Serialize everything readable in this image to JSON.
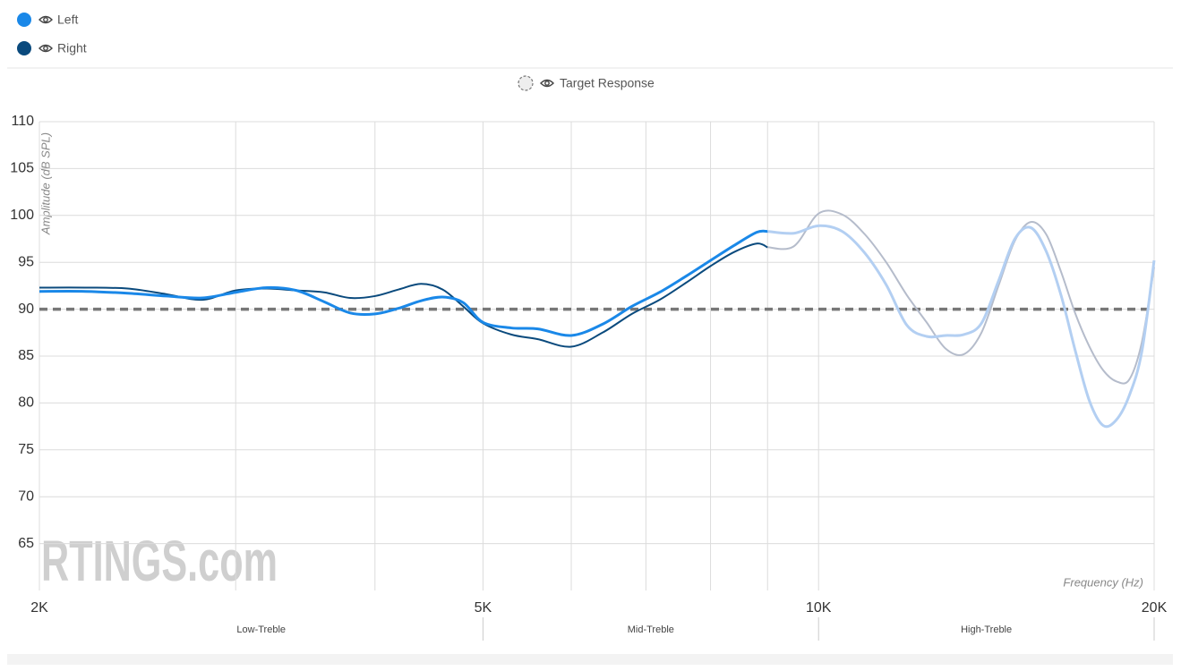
{
  "chart_data": {
    "type": "line",
    "xscale": "log",
    "xlim": [
      2000,
      20000
    ],
    "ylim": [
      60,
      110
    ],
    "xticks": [
      {
        "value": 2000,
        "label": "2K"
      },
      {
        "value": 5000,
        "label": "5K"
      },
      {
        "value": 10000,
        "label": "10K"
      },
      {
        "value": 20000,
        "label": "20K"
      }
    ],
    "x_gridlines": [
      3000,
      4000,
      6000,
      7000,
      8000,
      9000
    ],
    "yticks": [
      65,
      70,
      75,
      80,
      85,
      90,
      95,
      100,
      105,
      110
    ],
    "grid": true,
    "ylabel": "Amplitude (dB SPL)",
    "xlabel": "Frequency (Hz)",
    "watermark": "RTINGS.com",
    "faded_above": 9000,
    "bands": [
      {
        "label": "Low-Treble",
        "from": 2000,
        "to": 5000
      },
      {
        "label": "Mid-Treble",
        "from": 5000,
        "to": 10000
      },
      {
        "label": "High-Treble",
        "from": 10000,
        "to": 20000
      }
    ],
    "target": {
      "name": "Target Response",
      "value": 90,
      "color": "#777777"
    },
    "x": [
      2000,
      2200,
      2400,
      2600,
      2800,
      3000,
      3200,
      3400,
      3600,
      3800,
      4000,
      4200,
      4400,
      4600,
      4800,
      5000,
      5300,
      5600,
      6000,
      6400,
      6800,
      7200,
      7600,
      8000,
      8400,
      8800,
      9000,
      9500,
      10000,
      10500,
      11000,
      11500,
      12000,
      12500,
      13000,
      13500,
      14000,
      14500,
      15000,
      15500,
      16000,
      16500,
      17000,
      17500,
      18000,
      18500,
      19000,
      19500,
      20000
    ],
    "series": [
      {
        "name": "Left",
        "color": "#1a88e8",
        "faded_color": "#b3cff2",
        "values": [
          91.9,
          91.9,
          91.7,
          91.4,
          91.2,
          91.8,
          92.3,
          92.0,
          90.8,
          89.6,
          89.5,
          90.1,
          90.9,
          91.3,
          90.7,
          88.6,
          88.0,
          87.9,
          87.2,
          88.4,
          90.3,
          91.8,
          93.5,
          95.2,
          96.8,
          98.2,
          98.3,
          98.1,
          98.9,
          98.3,
          96.0,
          92.6,
          88.3,
          87.1,
          87.2,
          87.3,
          88.5,
          93.0,
          97.5,
          98.7,
          96.2,
          91.5,
          85.5,
          80.2,
          77.6,
          78.2,
          80.8,
          85.5,
          95.2
        ]
      },
      {
        "name": "Right",
        "color": "#0a4a7d",
        "faded_color": "#b5bccb",
        "values": [
          92.3,
          92.3,
          92.2,
          91.6,
          91.0,
          92.0,
          92.2,
          92.0,
          91.8,
          91.2,
          91.4,
          92.1,
          92.7,
          92.1,
          90.3,
          88.5,
          87.3,
          86.8,
          86.0,
          87.5,
          89.5,
          91.0,
          92.8,
          94.6,
          96.1,
          97.0,
          96.6,
          96.7,
          100.2,
          100.1,
          98.0,
          95.0,
          91.5,
          88.6,
          85.8,
          85.2,
          87.5,
          92.5,
          97.3,
          99.3,
          98.0,
          94.0,
          89.5,
          86.0,
          83.5,
          82.3,
          82.5,
          86.5,
          94.5
        ]
      }
    ]
  }
}
